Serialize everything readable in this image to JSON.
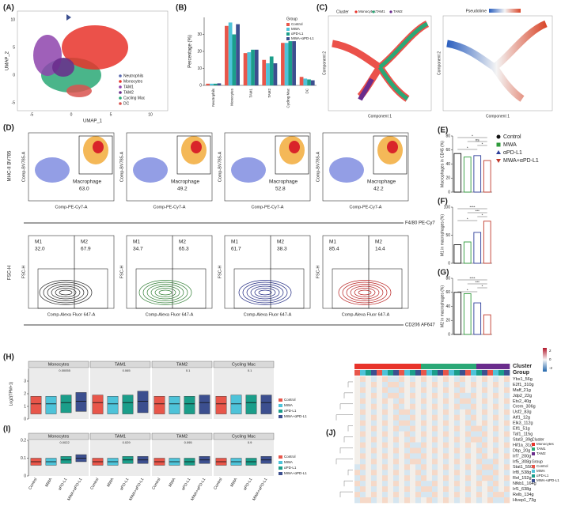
{
  "figure": {
    "panels": [
      "(A)",
      "(B)",
      "(C)",
      "(D)",
      "(E)",
      "(F)",
      "(G)",
      "(H)",
      "(I)",
      "(J)"
    ],
    "a": {
      "xlabel": "UMAP_1",
      "ylabel": "UMAP_2",
      "xticks": [
        "-5",
        "0",
        "5",
        "10"
      ],
      "yticks": [
        "10",
        "5",
        "0",
        "-5"
      ],
      "legend": [
        {
          "name": "Neutrophils",
          "color": "#5a6bb0"
        },
        {
          "name": "Monocytes",
          "color": "#e8332a"
        },
        {
          "name": "TAM1",
          "color": "#8e44ad"
        },
        {
          "name": "TAM2",
          "color": "#6a2c8c"
        },
        {
          "name": "Cycling Mac",
          "color": "#2aa876"
        },
        {
          "name": "DC",
          "color": "#d9534f"
        }
      ]
    },
    "c": {
      "cluster_title": "Cluster",
      "clusters": [
        {
          "name": "Monocytes",
          "color": "#e8332a"
        },
        {
          "name": "TAM1",
          "color": "#2aa876"
        },
        {
          "name": "TAM2",
          "color": "#6a2c8c"
        }
      ],
      "pseudotime_title": "Pseudotime",
      "xlabel": "Component 1",
      "ylabel": "Component 2"
    },
    "d": {
      "dot_ylabel": "MHC-II BV785",
      "dot_axis_y": "Comp-BV785-A",
      "dot_axis_x": "Comp-PE-Cy7-A",
      "gate": "Macrophage",
      "gate_values": [
        "63.0",
        "49.2",
        "52.8",
        "42.2"
      ],
      "f480": "F4/80 PE-Cy7",
      "contour_y": "FSC-H",
      "contour_x": "Comp-Alexa Fluor 647-A",
      "cd206": "CD206 AF647",
      "m1": "M1",
      "m2": "M2",
      "m1_values": [
        "32.0",
        "34.7",
        "61.7",
        "85.4"
      ],
      "m2_values": [
        "67.9",
        "65.3",
        "38.3",
        "14.4"
      ],
      "colors": [
        "#222222",
        "#2e7d32",
        "#1a237e",
        "#b71c1c"
      ]
    },
    "efg_legend": [
      {
        "name": "Control",
        "color": "#111111",
        "marker": "circle"
      },
      {
        "name": "MWA",
        "color": "#2e9a3a",
        "marker": "square"
      },
      {
        "name": "αPD-L1",
        "color": "#2d3e9a",
        "marker": "triangle"
      },
      {
        "name": "MWA+αPD-L1",
        "color": "#c0392b",
        "marker": "triangle-down"
      }
    ],
    "groups": [
      {
        "name": "Control",
        "color": "#e8564a"
      },
      {
        "name": "MWA",
        "color": "#4ec3d9"
      },
      {
        "name": "αPD-L1",
        "color": "#1b9e8a"
      },
      {
        "name": "MWA+αPD-L1",
        "color": "#3c4f8f"
      }
    ],
    "j": {
      "cluster_label": "Cluster",
      "group_label": "Group",
      "genes": [
        "Ybx1_56g",
        "E2f1_310g",
        "Maff_21g",
        "Jdp2_22g",
        "Ets2_40g",
        "Crem_306g",
        "Usf2_83g",
        "Atf1_12g",
        "Elk3_112g",
        "Elf1_51g",
        "Taf1_115g",
        "Stat3_39g",
        "Hif1a_31g",
        "Dbp_20g",
        "Irf7_200g",
        "Irf5_308g",
        "Stat1_550g",
        "Irf8_538g",
        "Rel_152g",
        "Nfkb1_164g",
        "Irf1_638g",
        "Relb_134g",
        "Hivep1_73g"
      ],
      "scale_ticks": [
        "2",
        "0",
        "-2"
      ]
    }
  },
  "chart_data": [
    {
      "type": "bar",
      "ylabel": "Percentage (%)",
      "legend_title": "Group",
      "categories": [
        "Neutrophils",
        "Monocytes",
        "TAM1",
        "TAM2",
        "Cycling Mac",
        "DC"
      ],
      "series": [
        {
          "name": "Control",
          "color": "#e8564a",
          "values": [
            1,
            35,
            19,
            15,
            25,
            5
          ]
        },
        {
          "name": "MWA",
          "color": "#4ec3d9",
          "values": [
            1,
            37,
            19.5,
            13,
            25,
            4
          ]
        },
        {
          "name": "αPD-L1",
          "color": "#1b9e8a",
          "values": [
            1,
            30,
            21,
            17,
            26,
            3.5
          ]
        },
        {
          "name": "MWA+αPD-L1",
          "color": "#3c4f8f",
          "values": [
            1.2,
            36,
            21,
            13,
            26,
            3
          ]
        }
      ],
      "ylim": [
        0,
        40
      ],
      "yticks": [
        0,
        10,
        20,
        30
      ]
    },
    {
      "type": "dotbar",
      "ylabel": "Macrophages in CD45 (%)",
      "values": [
        55,
        50,
        52,
        45
      ],
      "ylim": [
        0,
        80
      ],
      "yticks": [
        0,
        20,
        40,
        60,
        80
      ],
      "annotations": [
        "*",
        "ns",
        "*",
        "*"
      ]
    },
    {
      "type": "dotbar",
      "ylabel": "M1 in macrophages (%)",
      "values": [
        33,
        38,
        55,
        75
      ],
      "ylim": [
        0,
        100
      ],
      "yticks": [
        0,
        50,
        100
      ],
      "annotations": [
        "****",
        "***",
        "*",
        "*"
      ]
    },
    {
      "type": "dotbar",
      "ylabel": "M2 in macrophages (%)",
      "values": [
        60,
        58,
        45,
        28
      ],
      "ylim": [
        0,
        80
      ],
      "yticks": [
        0,
        20,
        40,
        60,
        80
      ],
      "annotations": [
        "****",
        "***",
        "*",
        "*"
      ]
    },
    {
      "type": "box",
      "ylabel": "Log2(TPM+1)",
      "ylim": [
        0,
        4
      ],
      "yticks": [
        0,
        1,
        2,
        3
      ],
      "facets": [
        {
          "title": "Monocytes",
          "q1": [
            0.4,
            0.4,
            0.5,
            0.6
          ],
          "median": [
            1.2,
            1.2,
            1.3,
            1.4
          ],
          "q3": [
            1.8,
            1.8,
            1.9,
            2.1
          ],
          "top": "0.00055"
        },
        {
          "title": "TAM1",
          "q1": [
            0.4,
            0.4,
            0.4,
            0.5
          ],
          "median": [
            1.3,
            1.2,
            1.3,
            1.4
          ],
          "q3": [
            1.9,
            1.8,
            1.9,
            2.2
          ],
          "top": "0.065"
        },
        {
          "title": "TAM2",
          "q1": [
            0.4,
            0.4,
            0.4,
            0.4
          ],
          "median": [
            1.2,
            1.2,
            1.2,
            1.3
          ],
          "q3": [
            1.8,
            1.8,
            1.8,
            1.9
          ],
          "top": "0.1"
        },
        {
          "title": "Cycling Mac",
          "q1": [
            0.4,
            0.4,
            0.4,
            0.4
          ],
          "median": [
            1.2,
            1.2,
            1.3,
            1.3
          ],
          "q3": [
            1.8,
            1.9,
            1.9,
            1.9
          ],
          "top": "0.1"
        }
      ]
    },
    {
      "type": "box",
      "ylim": [
        0,
        0.2
      ],
      "yticks": [
        0,
        0.1,
        0.2
      ],
      "categories": [
        "Control",
        "MWA",
        "αPD-L1",
        "MWA+αPD-L1"
      ],
      "facets": [
        {
          "title": "Monocytes",
          "q1": [
            0.06,
            0.06,
            0.07,
            0.08
          ],
          "median": [
            0.08,
            0.08,
            0.09,
            0.1
          ],
          "q3": [
            0.1,
            0.1,
            0.11,
            0.12
          ],
          "top": "0.0022"
        },
        {
          "title": "TAM1",
          "q1": [
            0.06,
            0.06,
            0.07,
            0.07
          ],
          "median": [
            0.08,
            0.08,
            0.09,
            0.09
          ],
          "q3": [
            0.1,
            0.1,
            0.11,
            0.11
          ],
          "top": "0.029"
        },
        {
          "title": "TAM2",
          "q1": [
            0.06,
            0.06,
            0.06,
            0.07
          ],
          "median": [
            0.08,
            0.08,
            0.08,
            0.09
          ],
          "q3": [
            0.1,
            0.1,
            0.1,
            0.11
          ],
          "top": "0.095"
        },
        {
          "title": "Cycling Mac",
          "q1": [
            0.06,
            0.06,
            0.06,
            0.07
          ],
          "median": [
            0.08,
            0.08,
            0.08,
            0.09
          ],
          "q3": [
            0.1,
            0.1,
            0.1,
            0.11
          ],
          "top": "0.9"
        }
      ]
    }
  ]
}
